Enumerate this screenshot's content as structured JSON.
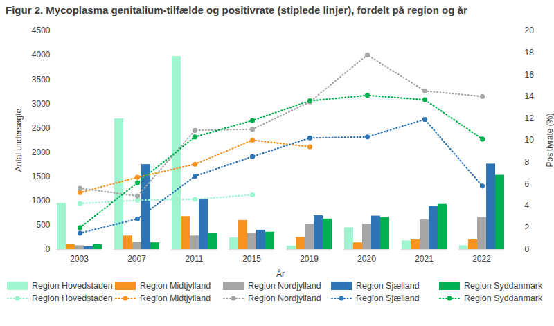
{
  "chart_data": {
    "type": "bar",
    "title": "Figur 2. Mycoplasma genitalium-tilfælde og positivrate (stiplede linjer), fordelt på region og år",
    "x_label": "År",
    "y_label": "Antal undersøgte",
    "y2_label": "Positivrate (%)",
    "categories": [
      "2003",
      "2007",
      "2011",
      "2015",
      "2019",
      "2020",
      "2021",
      "2022"
    ],
    "series": [
      {
        "name": "Region Hovedstaden",
        "color": "#9ef5cf",
        "type": "bar",
        "values": [
          950,
          2690,
          3970,
          240,
          70,
          450,
          180,
          80
        ]
      },
      {
        "name": "Region Midtjylland",
        "color": "#f7931e",
        "type": "bar",
        "values": [
          100,
          280,
          680,
          600,
          250,
          140,
          200,
          200
        ]
      },
      {
        "name": "Region Nordjylland",
        "color": "#a6a6a6",
        "type": "bar",
        "values": [
          80,
          150,
          280,
          330,
          520,
          520,
          610,
          660
        ]
      },
      {
        "name": "Region Sjælland",
        "color": "#2e75b6",
        "type": "bar",
        "values": [
          60,
          1750,
          1030,
          400,
          700,
          690,
          890,
          1760
        ]
      },
      {
        "name": "Region Syddanmark",
        "color": "#00b050",
        "type": "bar",
        "values": [
          100,
          140,
          340,
          360,
          630,
          660,
          930,
          1530
        ]
      },
      {
        "name": "Region Hovedstaden",
        "color": "#9ef5cf",
        "type": "line",
        "axis": "y2",
        "line_style": "dotted",
        "marker": "circle",
        "values": [
          4.2,
          4.5,
          4.6,
          5.0,
          null,
          null,
          null,
          null
        ]
      },
      {
        "name": "Region Midtjylland",
        "color": "#f7931e",
        "type": "line",
        "axis": "y2",
        "line_style": "dotted",
        "marker": "circle",
        "values": [
          5.2,
          6.6,
          7.8,
          10.0,
          9.4,
          null,
          null,
          null
        ]
      },
      {
        "name": "Region Nordjylland",
        "color": "#a6a6a6",
        "type": "line",
        "axis": "y2",
        "line_style": "dotted",
        "marker": "circle",
        "values": [
          5.6,
          4.9,
          10.9,
          11.0,
          13.5,
          17.8,
          14.5,
          14.0
        ]
      },
      {
        "name": "Region Sjælland",
        "color": "#2e75b6",
        "type": "line",
        "axis": "y2",
        "line_style": "dotted",
        "marker": "circle",
        "values": [
          1.5,
          2.8,
          6.7,
          8.5,
          10.2,
          10.3,
          11.9,
          5.8
        ]
      },
      {
        "name": "Region Syddanmark",
        "color": "#00b050",
        "type": "line",
        "axis": "y2",
        "line_style": "dotted",
        "marker": "circle",
        "values": [
          2.0,
          6.1,
          10.3,
          11.8,
          13.6,
          14.1,
          13.7,
          10.1
        ]
      }
    ],
    "ylim": [
      0,
      4500
    ],
    "yticks": [
      0,
      500,
      1000,
      1500,
      2000,
      2500,
      3000,
      3500,
      4000,
      4500
    ],
    "y2lim": [
      0,
      20
    ],
    "y2ticks": [
      0,
      2,
      4,
      6,
      8,
      10,
      12,
      14,
      16,
      18,
      20
    ],
    "grid": false,
    "legend": "bottom"
  }
}
